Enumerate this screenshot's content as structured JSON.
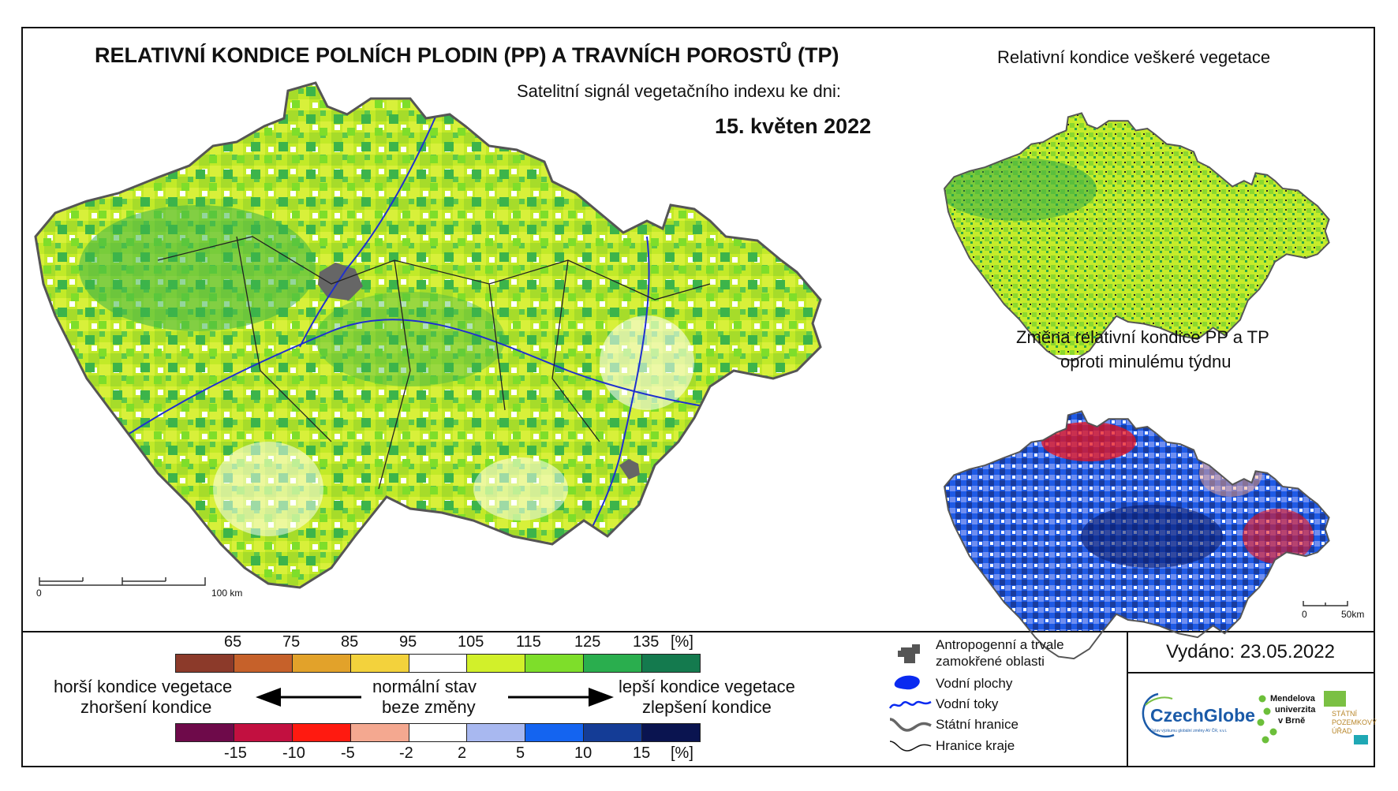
{
  "main_map": {
    "title": "RELATIVNÍ KONDICE POLNÍCH PLODIN (PP) A TRAVNÍCH POROSTŮ (TP)",
    "subtitle": "Satelitní signál vegetačního indexu ke dni:",
    "date": "15. květen 2022",
    "scale": {
      "start": "0",
      "end": "100 km"
    }
  },
  "inset_vegetation": {
    "title": "Relativní kondice veškeré vegetace"
  },
  "inset_change": {
    "title_line1": "Změna relativní kondice PP a TP",
    "title_line2": "oproti minulému týdnu",
    "scale": {
      "start": "0",
      "end": "50km"
    }
  },
  "legend_condition": {
    "unit": "[%]",
    "ticks": [
      "65",
      "75",
      "85",
      "95",
      "105",
      "115",
      "125",
      "135"
    ],
    "colors": [
      "#8c3a2a",
      "#c6612a",
      "#e2a22a",
      "#f3d23c",
      "#ffffff",
      "#d2f02a",
      "#7ede2a",
      "#2aae4e",
      "#147a4e"
    ]
  },
  "legend_change": {
    "unit": "[%]",
    "ticks": [
      "-15",
      "-10",
      "-5",
      "-2",
      "2",
      "5",
      "10",
      "15"
    ],
    "colors": [
      "#6e0a4a",
      "#c21040",
      "#ff1a10",
      "#f4a890",
      "#ffffff",
      "#a8b8f0",
      "#1464f0",
      "#143c96",
      "#0a1450"
    ]
  },
  "legend_text": {
    "worse_line1": "horší kondice vegetace",
    "worse_line2": "zhoršení kondice",
    "normal_line1": "normální stav",
    "normal_line2": "beze změny",
    "better_line1": "lepší kondice vegetace",
    "better_line2": "zlepšení kondice"
  },
  "symbol_legend": [
    {
      "icon": "urban-area-icon",
      "label_line1": "Antropogenní a trvale",
      "label_line2": "zamokřené oblasti"
    },
    {
      "icon": "water-body-icon",
      "label_line1": "Vodní plochy",
      "label_line2": ""
    },
    {
      "icon": "river-icon",
      "label_line1": "Vodní toky",
      "label_line2": ""
    },
    {
      "icon": "state-border-icon",
      "label_line1": "Státní hranice",
      "label_line2": ""
    },
    {
      "icon": "region-border-icon",
      "label_line1": "Hranice kraje",
      "label_line2": ""
    }
  ],
  "issued": "Vydáno: 23.05.2022",
  "logos": {
    "czechglobe": "CzechGlobe",
    "czechglobe_sub": "Ústav výzkumu globální změny AV ČR, v.v.i.",
    "mendel_line1": "Mendelova",
    "mendel_line2": "univerzita",
    "mendel_line3": "v Brně",
    "spu_line1": "STÁTNÍ",
    "spu_line2": "POZEMKOVÝ",
    "spu_line3": "ÚŘAD"
  }
}
